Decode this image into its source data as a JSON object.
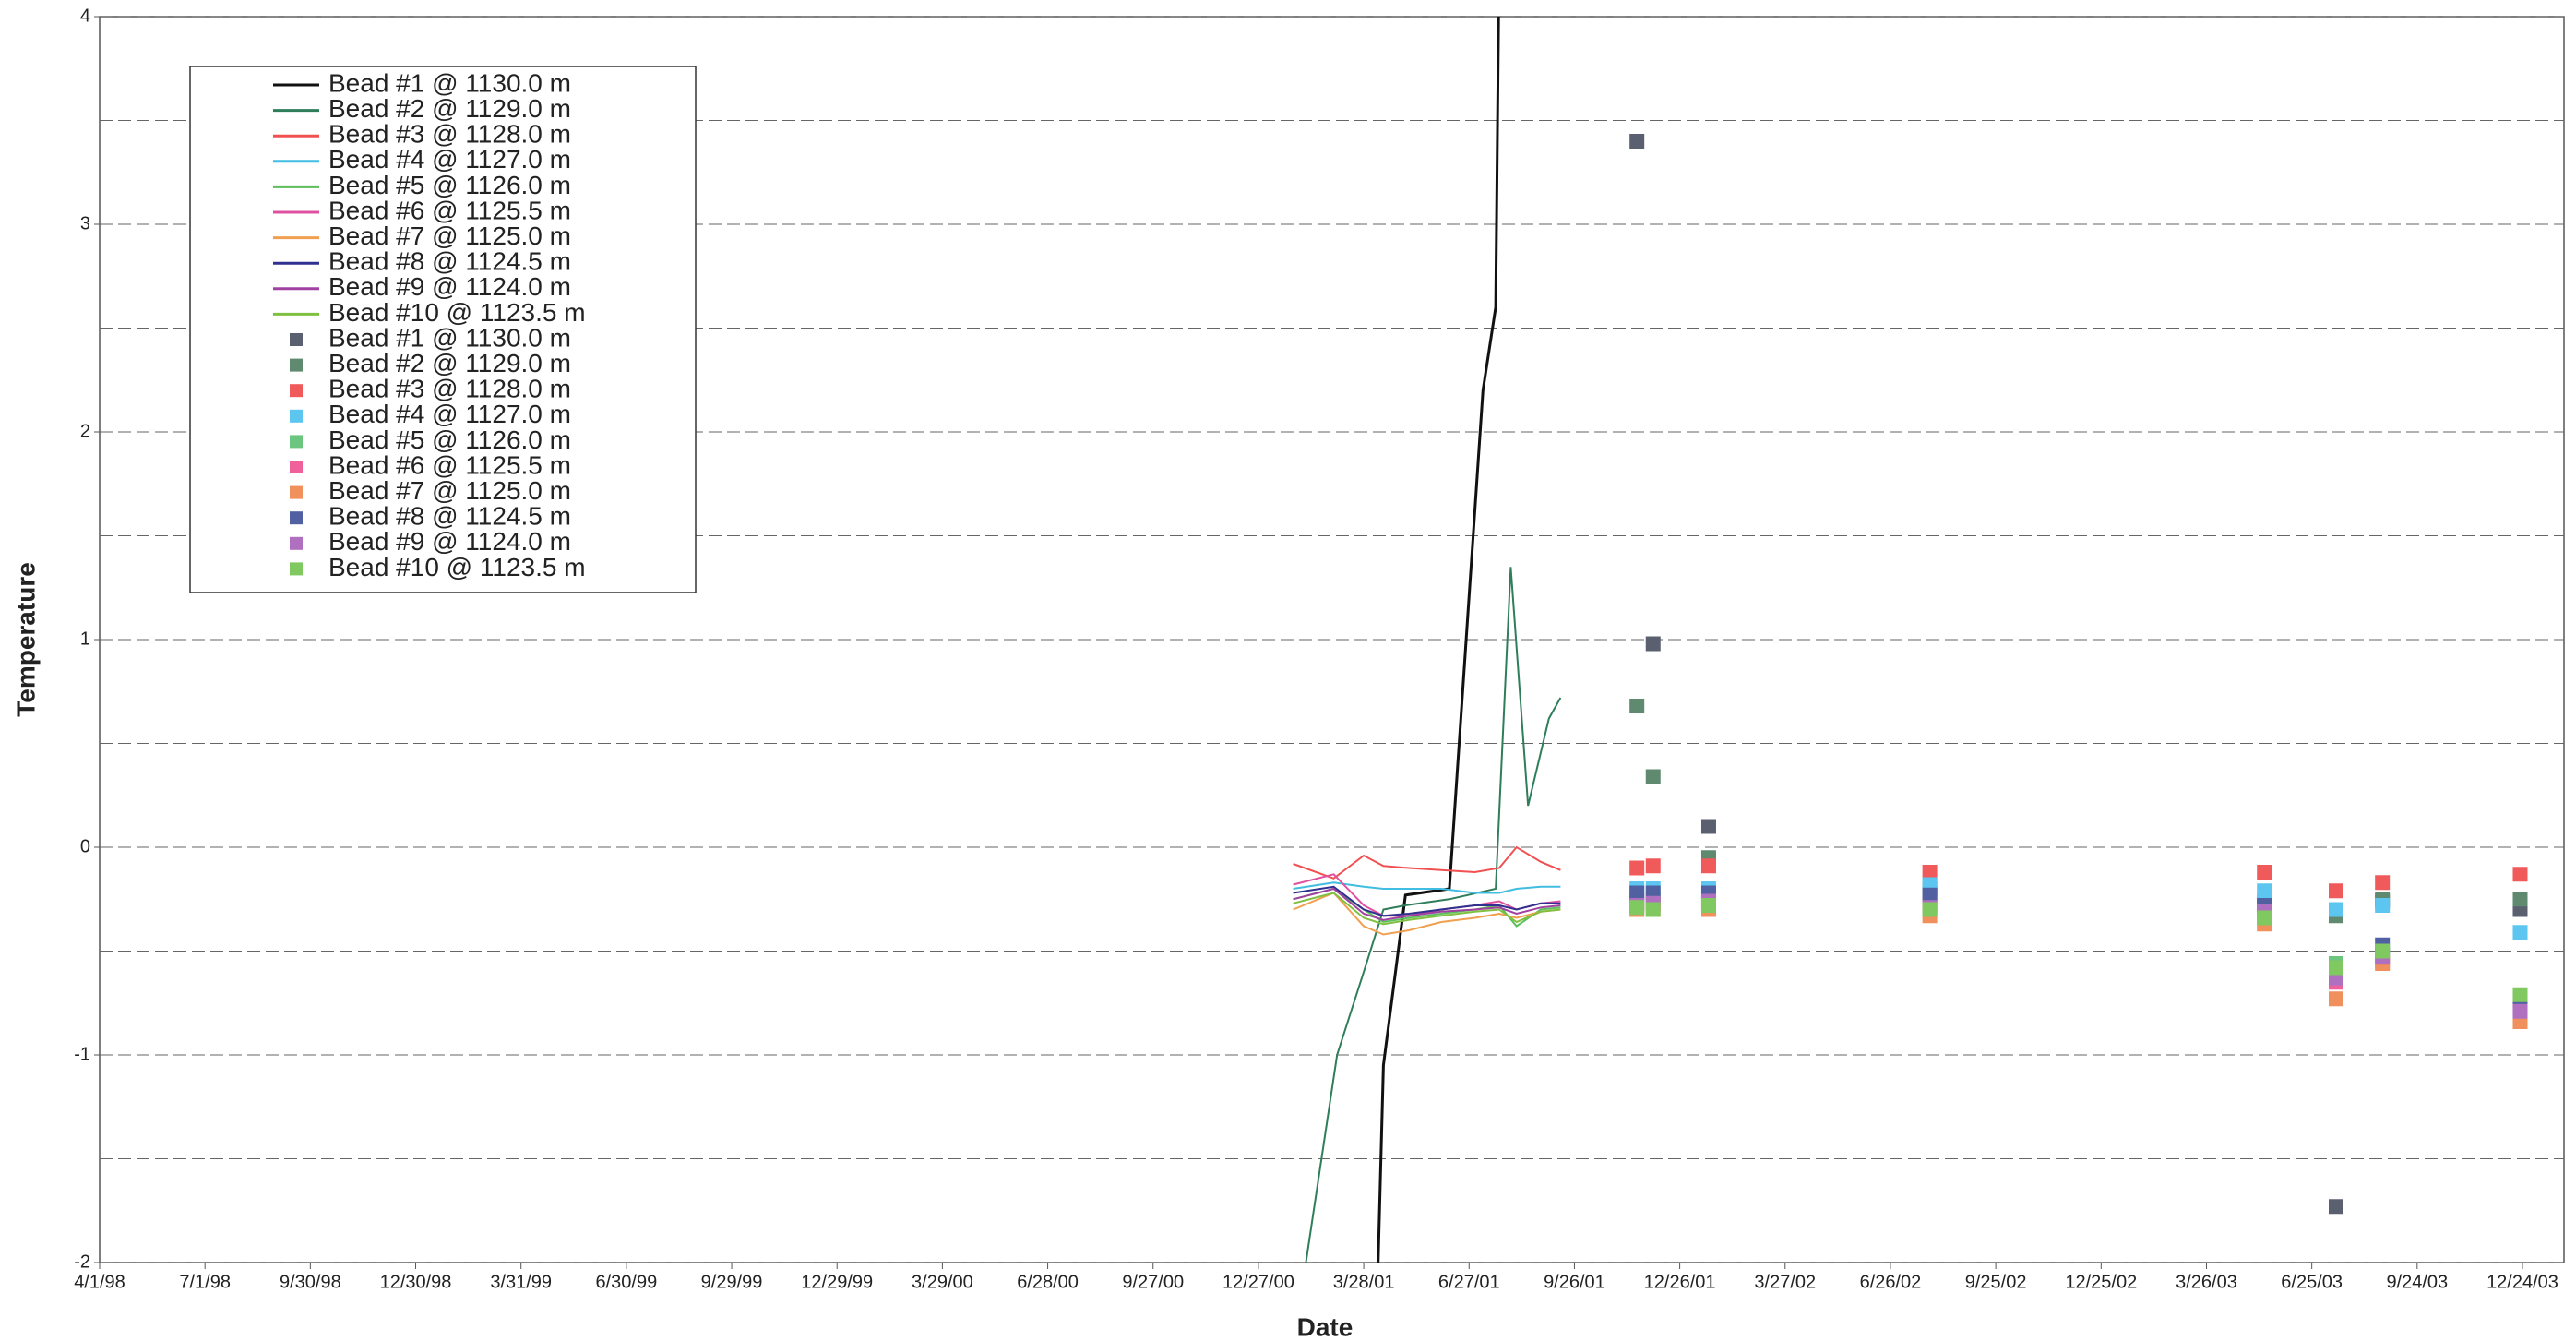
{
  "chart_data": {
    "type": "line",
    "x_label": "Date",
    "y_label": "Temperature",
    "xlim": [
      "4/1/98",
      "12/24/03"
    ],
    "xticks": [
      "4/1/98",
      "7/1/98",
      "9/30/98",
      "12/30/98",
      "3/31/99",
      "6/30/99",
      "9/29/99",
      "12/29/99",
      "3/29/00",
      "6/28/00",
      "9/27/00",
      "12/27/00",
      "3/28/01",
      "6/27/01",
      "9/26/01",
      "12/26/01",
      "3/27/02",
      "6/26/02",
      "9/25/02",
      "12/25/02",
      "3/26/03",
      "6/25/03",
      "9/24/03",
      "12/24/03"
    ],
    "ylim": [
      -2,
      4
    ],
    "yticks": [
      4,
      3,
      2,
      1,
      0,
      -1,
      -2
    ],
    "y_minor_ticks": [
      3.5,
      2.5,
      1.5,
      0.5,
      -0.5,
      -1.5
    ],
    "grid": true,
    "series": [
      {
        "name": "Bead #1 @ 1130.0 m",
        "mode": "line",
        "color": "#111111",
        "x": [
          "4/8/01",
          "4/14/01",
          "5/3/01",
          "6/10/01",
          "7/9/01",
          "7/20/01",
          "7/23/01"
        ],
        "values": [
          -2.3,
          -1.05,
          -0.23,
          -0.2,
          2.2,
          2.6,
          4.3
        ]
      },
      {
        "name": "Bead #2 @ 1129.0 m",
        "mode": "line",
        "color": "#2e7d5b",
        "x": [
          "2/6/01",
          "3/5/01",
          "3/28/01",
          "4/14/01",
          "5/3/01",
          "6/10/01",
          "7/20/01",
          "8/2/01",
          "8/17/01",
          "9/4/01",
          "9/14/01"
        ],
        "values": [
          -2.0,
          -1.0,
          -0.6,
          -0.3,
          -0.28,
          -0.25,
          -0.2,
          1.35,
          0.2,
          0.62,
          0.72
        ]
      },
      {
        "name": "Bead #3 @ 1128.0 m",
        "mode": "line",
        "color": "#f05050",
        "x": [
          "1/26/01",
          "3/2/01",
          "3/28/01",
          "4/14/01",
          "5/6/01",
          "6/3/01",
          "7/2/01",
          "7/23/01",
          "8/7/01",
          "8/28/01",
          "9/14/01"
        ],
        "values": [
          -0.08,
          -0.15,
          -0.04,
          -0.09,
          -0.1,
          -0.11,
          -0.12,
          -0.1,
          0.0,
          -0.07,
          -0.11
        ]
      },
      {
        "name": "Bead #4 @ 1127.0 m",
        "mode": "line",
        "color": "#40bde0",
        "x": [
          "1/26/01",
          "3/2/01",
          "3/28/01",
          "4/14/01",
          "5/6/01",
          "6/3/01",
          "7/2/01",
          "7/23/01",
          "8/7/01",
          "8/28/01",
          "9/14/01"
        ],
        "values": [
          -0.2,
          -0.17,
          -0.19,
          -0.2,
          -0.2,
          -0.2,
          -0.22,
          -0.22,
          -0.2,
          -0.19,
          -0.19
        ]
      },
      {
        "name": "Bead #5 @ 1126.0 m",
        "mode": "line",
        "color": "#5cbf5c",
        "x": [
          "1/26/01",
          "3/2/01",
          "3/28/01",
          "4/14/01",
          "5/6/01",
          "6/3/01",
          "7/2/01",
          "7/23/01",
          "8/7/01",
          "8/28/01",
          "9/14/01"
        ],
        "values": [
          -0.25,
          -0.2,
          -0.3,
          -0.36,
          -0.34,
          -0.32,
          -0.3,
          -0.28,
          -0.38,
          -0.3,
          -0.29
        ]
      },
      {
        "name": "Bead #6 @ 1125.5 m",
        "mode": "line",
        "color": "#e050a0",
        "x": [
          "1/26/01",
          "3/2/01",
          "3/28/01",
          "4/14/01",
          "5/6/01",
          "6/3/01",
          "7/2/01",
          "7/23/01",
          "8/7/01",
          "8/28/01",
          "9/14/01"
        ],
        "values": [
          -0.18,
          -0.13,
          -0.28,
          -0.33,
          -0.33,
          -0.3,
          -0.28,
          -0.26,
          -0.3,
          -0.27,
          -0.26
        ]
      },
      {
        "name": "Bead #7 @ 1125.0 m",
        "mode": "line",
        "color": "#f0a050",
        "x": [
          "1/26/01",
          "3/2/01",
          "3/28/01",
          "4/14/01",
          "5/6/01",
          "6/3/01",
          "7/2/01",
          "7/23/01",
          "8/7/01",
          "8/28/01",
          "9/14/01"
        ],
        "values": [
          -0.3,
          -0.22,
          -0.38,
          -0.42,
          -0.4,
          -0.36,
          -0.34,
          -0.32,
          -0.34,
          -0.31,
          -0.3
        ]
      },
      {
        "name": "Bead #8 @ 1124.5 m",
        "mode": "line",
        "color": "#303090",
        "x": [
          "1/26/01",
          "3/2/01",
          "3/28/01",
          "4/14/01",
          "5/6/01",
          "6/3/01",
          "7/2/01",
          "7/23/01",
          "8/7/01",
          "8/28/01",
          "9/14/01"
        ],
        "values": [
          -0.22,
          -0.19,
          -0.3,
          -0.33,
          -0.32,
          -0.3,
          -0.28,
          -0.28,
          -0.3,
          -0.27,
          -0.27
        ]
      },
      {
        "name": "Bead #9 @ 1124.0 m",
        "mode": "line",
        "color": "#a040a0",
        "x": [
          "1/26/01",
          "3/2/01",
          "3/28/01",
          "4/14/01",
          "5/6/01",
          "6/3/01",
          "7/2/01",
          "7/23/01",
          "8/7/01",
          "8/28/01",
          "9/14/01"
        ],
        "values": [
          -0.25,
          -0.2,
          -0.32,
          -0.35,
          -0.33,
          -0.31,
          -0.3,
          -0.29,
          -0.32,
          -0.29,
          -0.28
        ]
      },
      {
        "name": "Bead #10 @ 1123.5 m",
        "mode": "line",
        "color": "#80c040",
        "x": [
          "1/26/01",
          "3/2/01",
          "3/28/01",
          "4/14/01",
          "5/6/01",
          "6/3/01",
          "7/2/01",
          "7/23/01",
          "8/7/01",
          "8/28/01",
          "9/14/01"
        ],
        "values": [
          -0.27,
          -0.22,
          -0.34,
          -0.37,
          -0.35,
          -0.33,
          -0.31,
          -0.3,
          -0.36,
          -0.31,
          -0.3
        ]
      },
      {
        "name": "Bead #1 @ 1130.0 m",
        "mode": "markers",
        "color": "#5a6070",
        "x": [
          "11/19/01",
          "12/3/01",
          "1/20/02",
          "7/30/02",
          "5/15/03",
          "7/16/03",
          "8/25/03",
          "12/22/03"
        ],
        "values": [
          3.4,
          0.98,
          0.1,
          -0.2,
          -0.28,
          -1.73,
          -0.26,
          -0.3
        ]
      },
      {
        "name": "Bead #2 @ 1129.0 m",
        "mode": "markers",
        "color": "#5f8a6f",
        "x": [
          "11/19/01",
          "12/3/01",
          "1/20/02",
          "7/30/02",
          "5/15/03",
          "7/16/03",
          "8/25/03",
          "12/22/03"
        ],
        "values": [
          0.68,
          0.34,
          -0.05,
          -0.22,
          -0.26,
          -0.33,
          -0.25,
          -0.25
        ]
      },
      {
        "name": "Bead #3 @ 1128.0 m",
        "mode": "markers",
        "color": "#f05a5a",
        "x": [
          "11/19/01",
          "12/3/01",
          "1/20/02",
          "7/30/02",
          "5/15/03",
          "7/16/03",
          "8/25/03",
          "12/22/03"
        ],
        "values": [
          -0.1,
          -0.09,
          -0.09,
          -0.12,
          -0.12,
          -0.21,
          -0.17,
          -0.13
        ]
      },
      {
        "name": "Bead #4 @ 1127.0 m",
        "mode": "markers",
        "color": "#5cc6f0",
        "x": [
          "11/19/01",
          "12/3/01",
          "1/20/02",
          "7/30/02",
          "5/15/03",
          "7/16/03",
          "8/25/03",
          "12/22/03"
        ],
        "values": [
          -0.2,
          -0.2,
          -0.2,
          -0.18,
          -0.21,
          -0.3,
          -0.28,
          -0.41
        ]
      },
      {
        "name": "Bead #5 @ 1126.0 m",
        "mode": "markers",
        "color": "#6cc680",
        "x": [
          "11/19/01",
          "12/3/01",
          "1/20/02",
          "7/30/02",
          "5/15/03",
          "7/16/03",
          "8/25/03",
          "12/22/03"
        ],
        "values": [
          -0.27,
          -0.25,
          -0.25,
          -0.25,
          -0.3,
          -0.56,
          -0.52,
          -0.73
        ]
      },
      {
        "name": "Bead #6 @ 1125.5 m",
        "mode": "markers",
        "color": "#f0609a",
        "x": [
          "11/19/01",
          "12/3/01",
          "1/20/02",
          "7/30/02",
          "5/15/03",
          "7/16/03",
          "8/25/03",
          "12/22/03"
        ],
        "values": [
          -0.26,
          -0.27,
          -0.27,
          -0.28,
          -0.34,
          -0.65,
          -0.55,
          -0.77
        ]
      },
      {
        "name": "Bead #7 @ 1125.0 m",
        "mode": "markers",
        "color": "#f0905c",
        "x": [
          "11/19/01",
          "12/3/01",
          "1/20/02",
          "7/30/02",
          "5/15/03",
          "7/16/03",
          "8/25/03",
          "12/22/03"
        ],
        "values": [
          -0.3,
          -0.3,
          -0.3,
          -0.33,
          -0.37,
          -0.73,
          -0.56,
          -0.84
        ]
      },
      {
        "name": "Bead #8 @ 1124.5 m",
        "mode": "markers",
        "color": "#5060a0",
        "x": [
          "11/19/01",
          "12/3/01",
          "1/20/02",
          "7/30/02",
          "5/15/03",
          "7/16/03",
          "8/25/03",
          "12/22/03"
        ],
        "values": [
          -0.22,
          -0.22,
          -0.22,
          -0.23,
          -0.28,
          -0.6,
          -0.47,
          -0.75
        ]
      },
      {
        "name": "Bead #9 @ 1124.0 m",
        "mode": "markers",
        "color": "#b070c0",
        "x": [
          "11/19/01",
          "12/3/01",
          "1/20/02",
          "7/30/02",
          "5/15/03",
          "7/16/03",
          "8/25/03",
          "12/22/03"
        ],
        "values": [
          -0.28,
          -0.27,
          -0.26,
          -0.29,
          -0.31,
          -0.63,
          -0.53,
          -0.79
        ]
      },
      {
        "name": "Bead #10 @ 1123.5 m",
        "mode": "markers",
        "color": "#80c860",
        "x": [
          "11/19/01",
          "12/3/01",
          "1/20/02",
          "7/30/02",
          "5/15/03",
          "7/16/03",
          "8/25/03",
          "12/22/03"
        ],
        "values": [
          -0.29,
          -0.3,
          -0.28,
          -0.3,
          -0.34,
          -0.58,
          -0.5,
          -0.71
        ]
      }
    ]
  }
}
